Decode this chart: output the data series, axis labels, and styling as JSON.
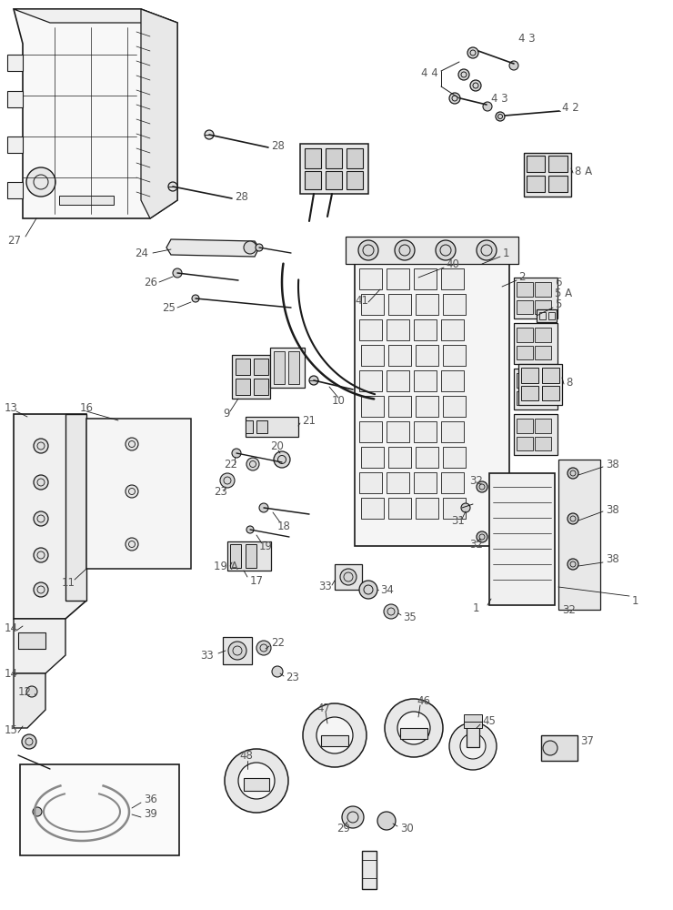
{
  "bg_color": "#ffffff",
  "line_color": "#1a1a1a",
  "fig_width": 7.4,
  "fig_height": 10.0,
  "dpi": 100,
  "label_color": "#555555",
  "label_fs": 8.5
}
